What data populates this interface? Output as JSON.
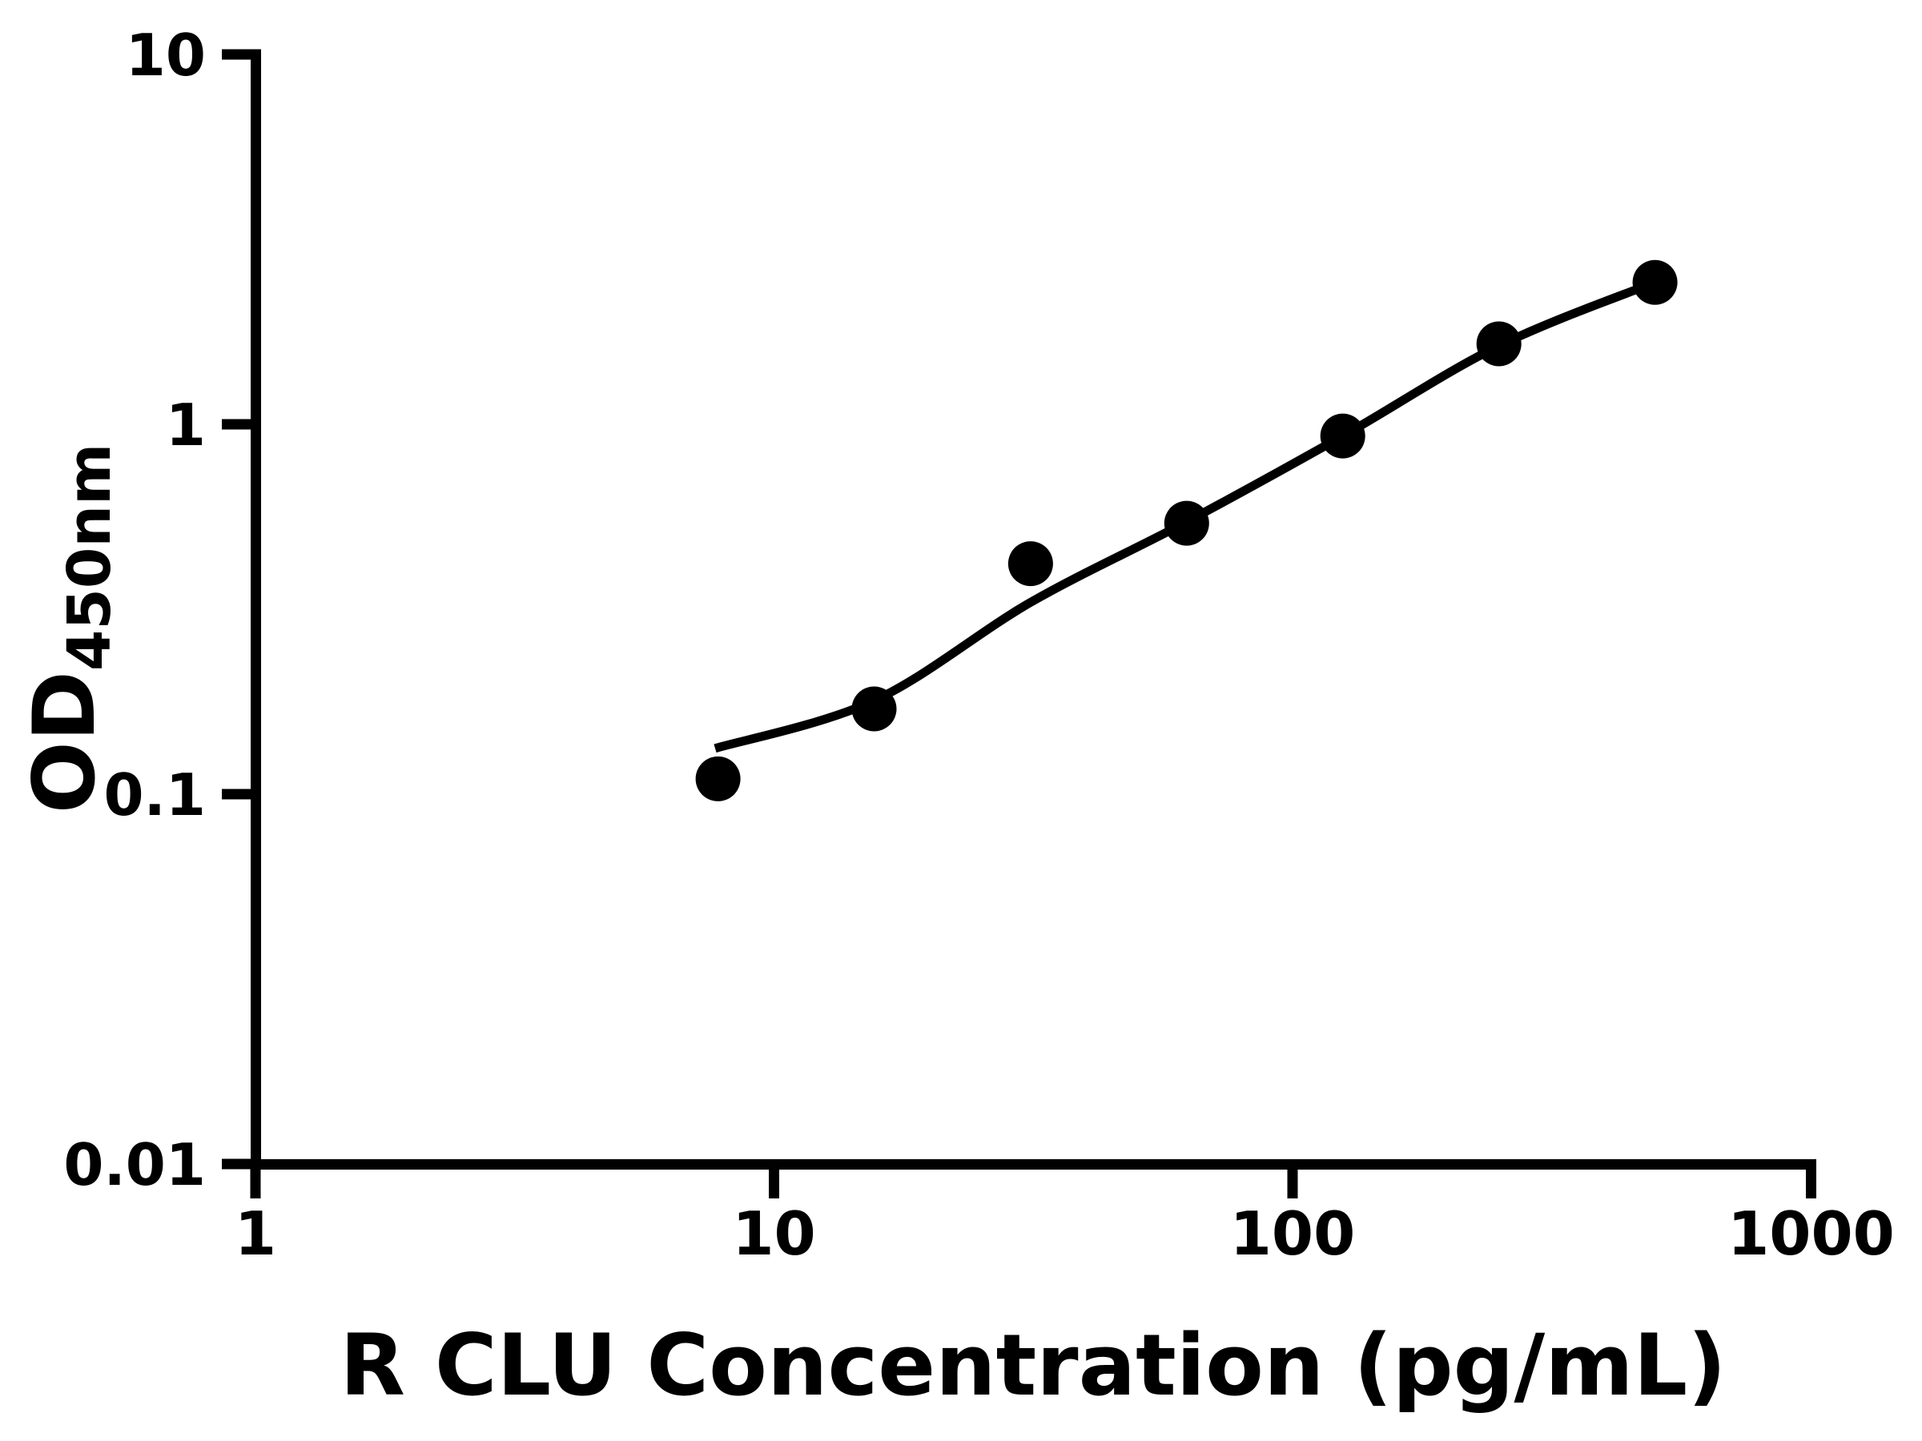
{
  "chart_data": {
    "type": "scatter",
    "title": "",
    "xlabel": "R CLU Concentration (pg/mL)",
    "ylabel_main": "OD",
    "ylabel_sub": "450nm",
    "x_scale": "log",
    "y_scale": "log",
    "xlim": [
      1,
      1000
    ],
    "ylim": [
      0.01,
      10
    ],
    "x_ticks": [
      1,
      10,
      100,
      1000
    ],
    "x_tick_labels": [
      "1",
      "10",
      "100",
      "1000"
    ],
    "y_ticks": [
      0.01,
      0.1,
      1,
      10
    ],
    "y_tick_labels": [
      "0.01",
      "0.1",
      "1",
      "10"
    ],
    "grid": false,
    "legend": null,
    "axis_color": "#000000",
    "marker_color": "#000000",
    "line_color": "#000000",
    "background_color": "#ffffff",
    "series": [
      {
        "name": "standard-points",
        "kind": "scatter",
        "x": [
          7.8,
          15.6,
          31.25,
          62.5,
          125,
          250,
          500
        ],
        "y": [
          0.11,
          0.17,
          0.42,
          0.54,
          0.93,
          1.65,
          2.42
        ]
      },
      {
        "name": "fit-curve",
        "kind": "line",
        "x": [
          7.7,
          15.6,
          31.25,
          62.5,
          125,
          250,
          500
        ],
        "y": [
          0.133,
          0.179,
          0.33,
          0.545,
          0.93,
          1.63,
          2.42
        ]
      }
    ]
  }
}
